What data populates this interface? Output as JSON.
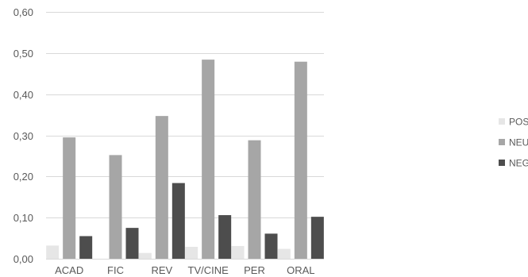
{
  "chart_data": {
    "type": "bar",
    "categories": [
      "ACAD",
      "FIC",
      "REV",
      "TV/CINE",
      "PER",
      "ORAL"
    ],
    "series": [
      {
        "name": "POS",
        "color": "#e6e6e6",
        "values": [
          0.032,
          0.0,
          0.014,
          0.029,
          0.031,
          0.024
        ]
      },
      {
        "name": "NEU",
        "color": "#a6a6a6",
        "values": [
          0.295,
          0.252,
          0.347,
          0.484,
          0.288,
          0.479
        ]
      },
      {
        "name": "NEG",
        "color": "#4d4d4d",
        "values": [
          0.055,
          0.075,
          0.184,
          0.106,
          0.061,
          0.102
        ]
      }
    ],
    "ylim": [
      0,
      0.6
    ],
    "yticks": [
      0.0,
      0.1,
      0.2,
      0.3,
      0.4,
      0.5,
      0.6
    ],
    "ytick_labels": [
      "0,00",
      "0,10",
      "0,20",
      "0,30",
      "0,40",
      "0,50",
      "0,60"
    ],
    "grid": true,
    "legend_position": "right",
    "title": "",
    "xlabel": "",
    "ylabel": ""
  }
}
